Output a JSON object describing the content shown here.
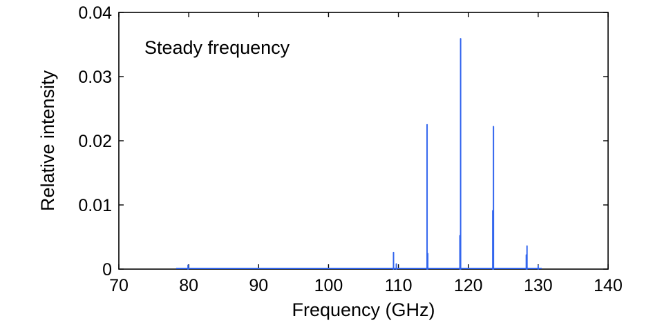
{
  "chart_data": {
    "type": "line",
    "title": "",
    "annotation": "Steady frequency",
    "xlabel": "Frequency (GHz)",
    "ylabel": "Relative intensity",
    "xlim": [
      70,
      140
    ],
    "ylim": [
      0,
      0.04
    ],
    "x_ticks": [
      70,
      80,
      90,
      100,
      110,
      120,
      130,
      140
    ],
    "x_tick_labels": [
      "70",
      "80",
      "90",
      "100",
      "110",
      "120",
      "130",
      "140"
    ],
    "y_ticks": [
      0,
      0.01,
      0.02,
      0.03,
      0.04
    ],
    "y_tick_labels": [
      "0",
      "0.01",
      "0.02",
      "0.03",
      "0.04"
    ],
    "grid": false,
    "series_color": "#3366ee",
    "baseline_range": [
      78.2,
      130.5
    ],
    "peaks": [
      {
        "x": 79.9,
        "y": 0.0006
      },
      {
        "x": 109.3,
        "y": 0.0026
      },
      {
        "x": 109.7,
        "y": 0.0008
      },
      {
        "x": 114.1,
        "y": 0.0225
      },
      {
        "x": 114.2,
        "y": 0.0024
      },
      {
        "x": 118.9,
        "y": 0.0359
      },
      {
        "x": 118.8,
        "y": 0.0052
      },
      {
        "x": 123.6,
        "y": 0.0222
      },
      {
        "x": 123.5,
        "y": 0.0091
      },
      {
        "x": 128.4,
        "y": 0.0036
      },
      {
        "x": 128.3,
        "y": 0.0022
      },
      {
        "x": 130.0,
        "y": 0.0005
      }
    ]
  }
}
